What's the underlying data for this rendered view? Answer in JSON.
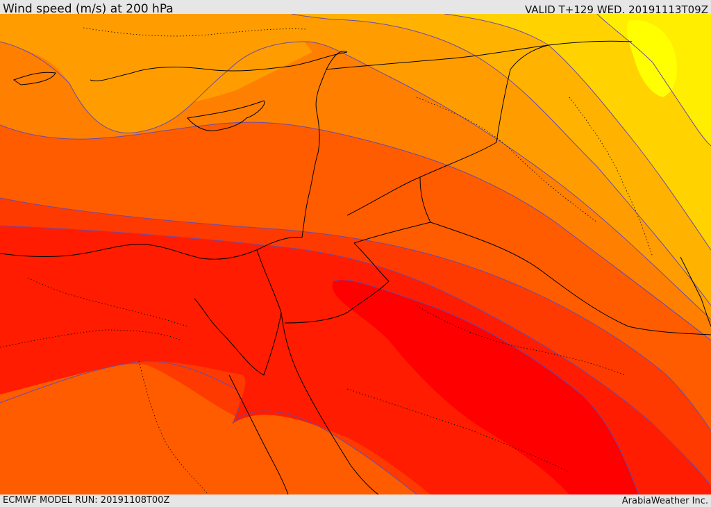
{
  "header": {
    "title": "Wind speed (m/s) at 200 hPa",
    "valid": "VALID T+129 WED. 20191113T09Z"
  },
  "footer": {
    "model_run": "ECMWF MODEL RUN: 20191108T00Z",
    "credit": "ArabiaWeather Inc."
  },
  "map": {
    "colors": {
      "band_yellow": "#ffee00",
      "band_gold": "#ffd200",
      "band_amber": "#ffb300",
      "band_orange": "#ff9d00",
      "band_dark_orange": "#ff7f00",
      "band_orange_red": "#ff5c00",
      "band_red_orange": "#ff3a00",
      "band_red": "#ff1c00",
      "band_core_red": "#ff0000",
      "isotach_line": "#6a4aa8",
      "coastline": "#000000",
      "border": "#000000"
    }
  }
}
